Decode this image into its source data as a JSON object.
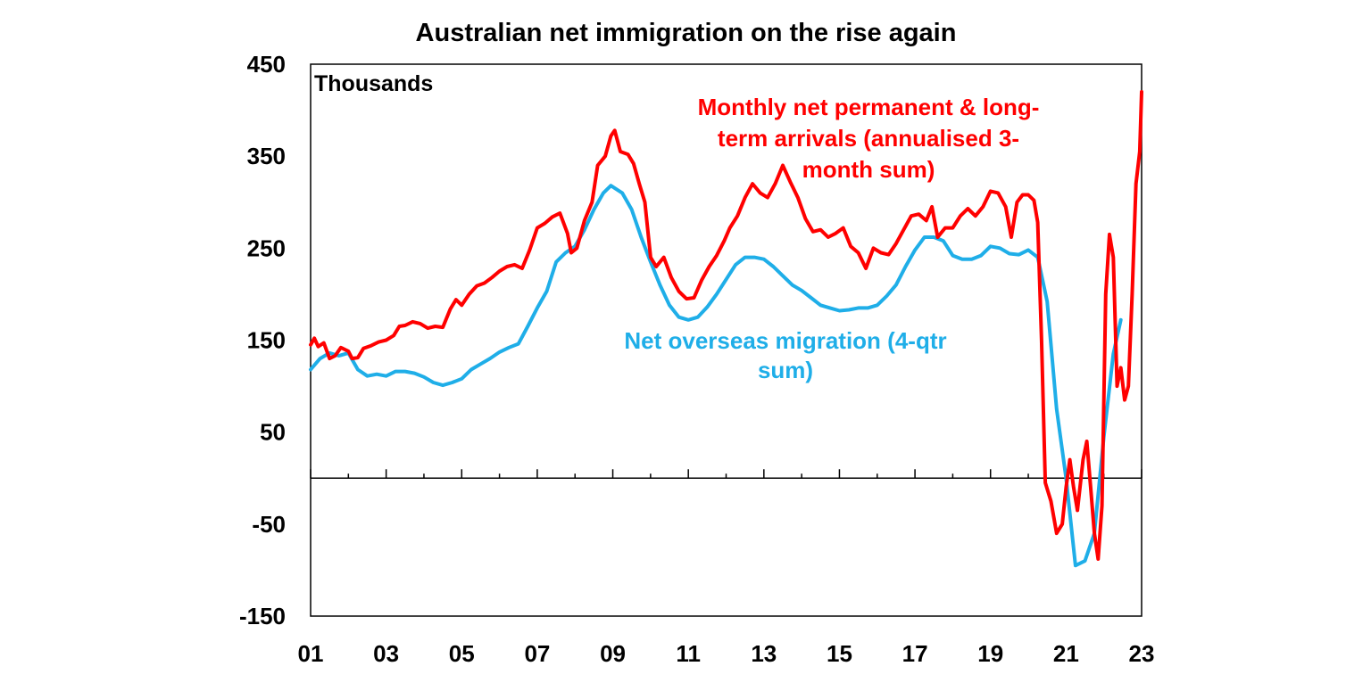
{
  "chart_data": {
    "type": "line",
    "title": "Australian net immigration on the rise again",
    "ylabel": "Thousands",
    "xlabel": "",
    "ylim": [
      -150,
      450
    ],
    "yticks": [
      450,
      350,
      250,
      150,
      50,
      -50,
      -150
    ],
    "xlim": [
      2001.0,
      2023.0
    ],
    "xtick_labels": [
      "01",
      "03",
      "05",
      "07",
      "09",
      "11",
      "13",
      "15",
      "17",
      "19",
      "21",
      "23"
    ],
    "grid": false,
    "legend": "none",
    "series": [
      {
        "name": "Monthly net permanent & long-term arrivals (annualised 3-month sum)",
        "color": "#ff0000",
        "label_lines": [
          "Monthly net permanent & long-",
          "term arrivals (annualised 3-",
          "month sum)"
        ],
        "points": [
          [
            2001.0,
            145
          ],
          [
            2001.1,
            152
          ],
          [
            2001.2,
            143
          ],
          [
            2001.35,
            147
          ],
          [
            2001.5,
            130
          ],
          [
            2001.65,
            133
          ],
          [
            2001.8,
            142
          ],
          [
            2002.0,
            138
          ],
          [
            2002.1,
            130
          ],
          [
            2002.25,
            131
          ],
          [
            2002.4,
            141
          ],
          [
            2002.6,
            144
          ],
          [
            2002.8,
            148
          ],
          [
            2003.0,
            150
          ],
          [
            2003.2,
            155
          ],
          [
            2003.35,
            165
          ],
          [
            2003.5,
            166
          ],
          [
            2003.7,
            170
          ],
          [
            2003.9,
            168
          ],
          [
            2004.1,
            163
          ],
          [
            2004.3,
            165
          ],
          [
            2004.5,
            164
          ],
          [
            2004.7,
            184
          ],
          [
            2004.85,
            194
          ],
          [
            2005.0,
            188
          ],
          [
            2005.2,
            200
          ],
          [
            2005.4,
            209
          ],
          [
            2005.6,
            212
          ],
          [
            2005.8,
            218
          ],
          [
            2006.0,
            225
          ],
          [
            2006.2,
            230
          ],
          [
            2006.4,
            232
          ],
          [
            2006.6,
            228
          ],
          [
            2006.8,
            248
          ],
          [
            2007.0,
            272
          ],
          [
            2007.2,
            277
          ],
          [
            2007.4,
            284
          ],
          [
            2007.6,
            288
          ],
          [
            2007.8,
            266
          ],
          [
            2007.9,
            245
          ],
          [
            2008.05,
            250
          ],
          [
            2008.25,
            280
          ],
          [
            2008.45,
            300
          ],
          [
            2008.6,
            340
          ],
          [
            2008.8,
            350
          ],
          [
            2008.95,
            372
          ],
          [
            2009.05,
            378
          ],
          [
            2009.2,
            355
          ],
          [
            2009.4,
            352
          ],
          [
            2009.55,
            342
          ],
          [
            2009.7,
            320
          ],
          [
            2009.85,
            300
          ],
          [
            2010.0,
            240
          ],
          [
            2010.15,
            230
          ],
          [
            2010.35,
            240
          ],
          [
            2010.55,
            218
          ],
          [
            2010.75,
            203
          ],
          [
            2010.95,
            195
          ],
          [
            2011.15,
            196
          ],
          [
            2011.35,
            215
          ],
          [
            2011.55,
            230
          ],
          [
            2011.75,
            242
          ],
          [
            2011.95,
            258
          ],
          [
            2012.1,
            272
          ],
          [
            2012.3,
            285
          ],
          [
            2012.5,
            305
          ],
          [
            2012.7,
            320
          ],
          [
            2012.9,
            310
          ],
          [
            2013.1,
            305
          ],
          [
            2013.3,
            320
          ],
          [
            2013.5,
            340
          ],
          [
            2013.7,
            322
          ],
          [
            2013.9,
            305
          ],
          [
            2014.1,
            282
          ],
          [
            2014.3,
            268
          ],
          [
            2014.5,
            270
          ],
          [
            2014.7,
            262
          ],
          [
            2014.9,
            266
          ],
          [
            2015.1,
            272
          ],
          [
            2015.3,
            252
          ],
          [
            2015.5,
            245
          ],
          [
            2015.7,
            228
          ],
          [
            2015.9,
            250
          ],
          [
            2016.1,
            245
          ],
          [
            2016.3,
            243
          ],
          [
            2016.5,
            255
          ],
          [
            2016.7,
            270
          ],
          [
            2016.9,
            285
          ],
          [
            2017.1,
            287
          ],
          [
            2017.3,
            280
          ],
          [
            2017.45,
            295
          ],
          [
            2017.6,
            262
          ],
          [
            2017.8,
            272
          ],
          [
            2018.0,
            272
          ],
          [
            2018.2,
            285
          ],
          [
            2018.4,
            293
          ],
          [
            2018.6,
            285
          ],
          [
            2018.8,
            295
          ],
          [
            2019.0,
            312
          ],
          [
            2019.2,
            310
          ],
          [
            2019.4,
            295
          ],
          [
            2019.55,
            262
          ],
          [
            2019.7,
            300
          ],
          [
            2019.85,
            308
          ],
          [
            2020.0,
            308
          ],
          [
            2020.15,
            302
          ],
          [
            2020.25,
            278
          ],
          [
            2020.35,
            150
          ],
          [
            2020.45,
            -5
          ],
          [
            2020.6,
            -25
          ],
          [
            2020.75,
            -60
          ],
          [
            2020.9,
            -50
          ],
          [
            2021.0,
            -10
          ],
          [
            2021.1,
            20
          ],
          [
            2021.2,
            -10
          ],
          [
            2021.3,
            -35
          ],
          [
            2021.45,
            20
          ],
          [
            2021.55,
            40
          ],
          [
            2021.65,
            -10
          ],
          [
            2021.75,
            -60
          ],
          [
            2021.85,
            -88
          ],
          [
            2021.95,
            -30
          ],
          [
            2022.05,
            200
          ],
          [
            2022.15,
            265
          ],
          [
            2022.25,
            240
          ],
          [
            2022.35,
            100
          ],
          [
            2022.45,
            120
          ],
          [
            2022.55,
            85
          ],
          [
            2022.65,
            100
          ],
          [
            2022.75,
            200
          ],
          [
            2022.85,
            320
          ],
          [
            2022.95,
            355
          ],
          [
            2023.0,
            420
          ]
        ]
      },
      {
        "name": "Net overseas migration (4-qtr sum)",
        "color": "#1faee8",
        "label_lines": [
          "Net overseas migration (4-qtr",
          "sum)"
        ],
        "points": [
          [
            2001.0,
            118
          ],
          [
            2001.25,
            130
          ],
          [
            2001.5,
            136
          ],
          [
            2001.75,
            133
          ],
          [
            2002.0,
            136
          ],
          [
            2002.25,
            118
          ],
          [
            2002.5,
            111
          ],
          [
            2002.75,
            113
          ],
          [
            2003.0,
            111
          ],
          [
            2003.25,
            116
          ],
          [
            2003.5,
            116
          ],
          [
            2003.75,
            114
          ],
          [
            2004.0,
            110
          ],
          [
            2004.25,
            104
          ],
          [
            2004.5,
            101
          ],
          [
            2004.75,
            104
          ],
          [
            2005.0,
            108
          ],
          [
            2005.25,
            118
          ],
          [
            2005.5,
            124
          ],
          [
            2005.75,
            130
          ],
          [
            2006.0,
            137
          ],
          [
            2006.25,
            142
          ],
          [
            2006.5,
            146
          ],
          [
            2006.75,
            165
          ],
          [
            2007.0,
            185
          ],
          [
            2007.25,
            203
          ],
          [
            2007.5,
            235
          ],
          [
            2007.75,
            245
          ],
          [
            2008.0,
            252
          ],
          [
            2008.25,
            270
          ],
          [
            2008.5,
            292
          ],
          [
            2008.75,
            310
          ],
          [
            2008.95,
            318
          ],
          [
            2009.25,
            310
          ],
          [
            2009.5,
            292
          ],
          [
            2009.75,
            262
          ],
          [
            2010.0,
            235
          ],
          [
            2010.25,
            210
          ],
          [
            2010.5,
            188
          ],
          [
            2010.75,
            175
          ],
          [
            2011.0,
            172
          ],
          [
            2011.25,
            175
          ],
          [
            2011.5,
            186
          ],
          [
            2011.75,
            200
          ],
          [
            2012.0,
            216
          ],
          [
            2012.25,
            232
          ],
          [
            2012.5,
            240
          ],
          [
            2012.75,
            240
          ],
          [
            2013.0,
            238
          ],
          [
            2013.25,
            230
          ],
          [
            2013.5,
            220
          ],
          [
            2013.75,
            210
          ],
          [
            2014.0,
            204
          ],
          [
            2014.25,
            196
          ],
          [
            2014.5,
            188
          ],
          [
            2014.75,
            185
          ],
          [
            2015.0,
            182
          ],
          [
            2015.25,
            183
          ],
          [
            2015.5,
            185
          ],
          [
            2015.75,
            185
          ],
          [
            2016.0,
            188
          ],
          [
            2016.25,
            198
          ],
          [
            2016.5,
            210
          ],
          [
            2016.75,
            230
          ],
          [
            2017.0,
            248
          ],
          [
            2017.25,
            262
          ],
          [
            2017.5,
            262
          ],
          [
            2017.75,
            258
          ],
          [
            2018.0,
            242
          ],
          [
            2018.25,
            238
          ],
          [
            2018.5,
            238
          ],
          [
            2018.75,
            242
          ],
          [
            2019.0,
            252
          ],
          [
            2019.25,
            250
          ],
          [
            2019.5,
            244
          ],
          [
            2019.75,
            243
          ],
          [
            2020.0,
            248
          ],
          [
            2020.25,
            240
          ],
          [
            2020.5,
            192
          ],
          [
            2020.75,
            75
          ],
          [
            2021.0,
            0
          ],
          [
            2021.25,
            -95
          ],
          [
            2021.5,
            -90
          ],
          [
            2021.75,
            -60
          ],
          [
            2022.0,
            45
          ],
          [
            2022.25,
            135
          ],
          [
            2022.45,
            172
          ]
        ]
      }
    ]
  }
}
